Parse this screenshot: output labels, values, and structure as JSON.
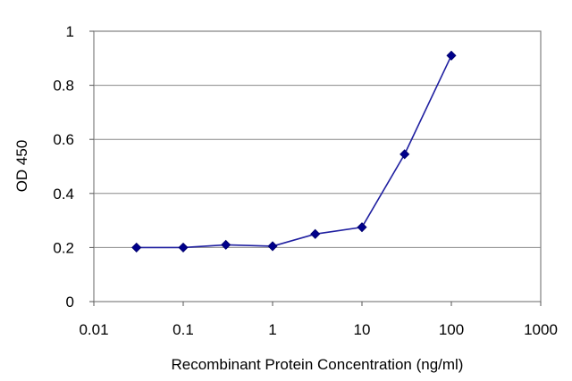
{
  "chart_data": {
    "type": "line",
    "title": "",
    "xlabel": "Recombinant Protein Concentration (ng/ml)",
    "ylabel": "OD 450",
    "xscale": "log",
    "xlim": [
      0.01,
      1000
    ],
    "ylim": [
      0,
      1
    ],
    "grid": "horizontal",
    "legend": "none",
    "x_ticks": [
      "0.01",
      "0.1",
      "1",
      "10",
      "100",
      "1000"
    ],
    "y_ticks": [
      "0",
      "0.2",
      "0.4",
      "0.6",
      "0.8",
      "1"
    ],
    "series": [
      {
        "color": "#1f1fa0",
        "x": [
          0.03,
          0.1,
          0.3,
          1,
          3,
          10,
          30,
          100
        ],
        "y": [
          0.2,
          0.2,
          0.21,
          0.205,
          0.25,
          0.275,
          0.545,
          0.91
        ]
      }
    ]
  }
}
